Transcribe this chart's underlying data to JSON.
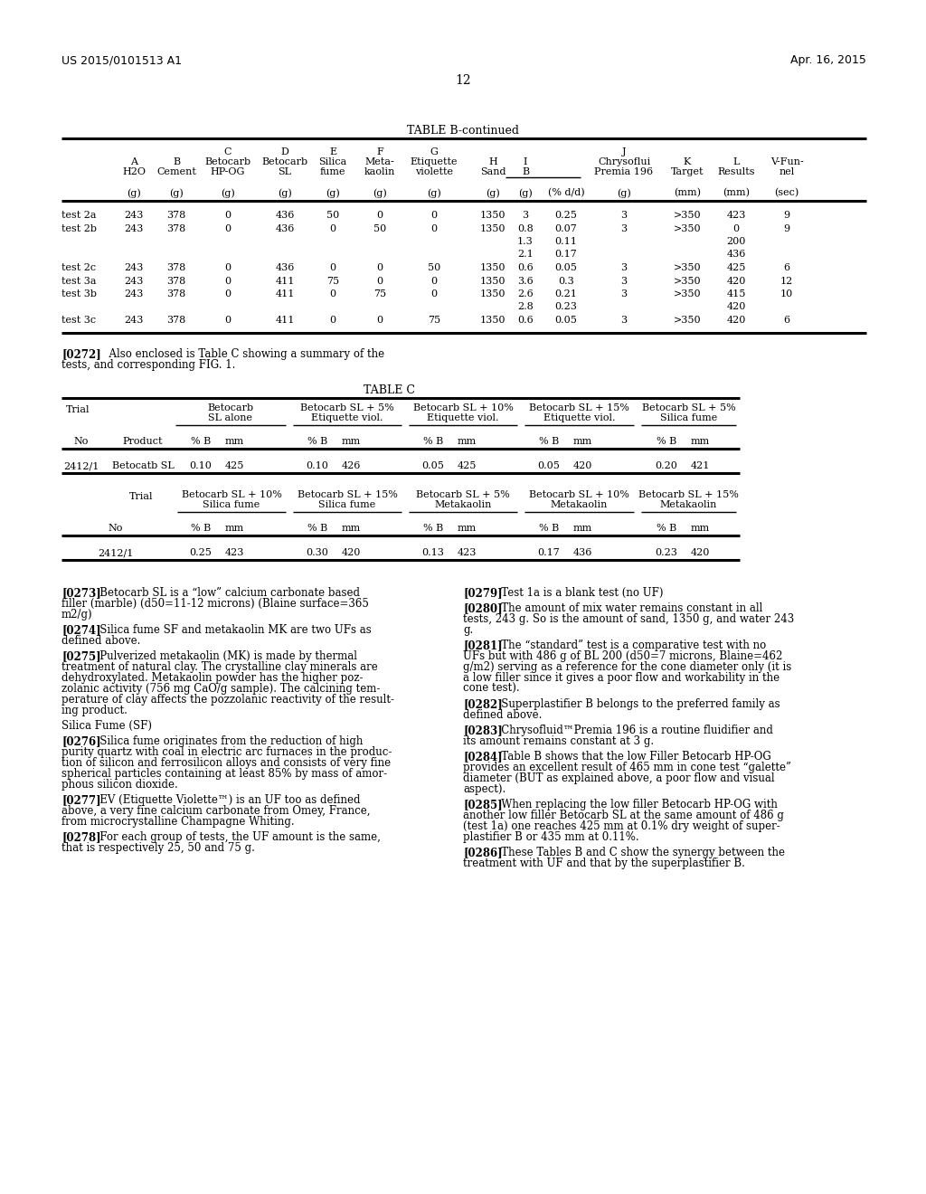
{
  "header_left": "US 2015/0101513 A1",
  "header_right": "Apr. 16, 2015",
  "page_number": "12",
  "table_b_title": "TABLE B-continued",
  "table_c_title": "TABLE C",
  "paragraph_272_bold": "[0272]",
  "paragraph_272_rest": "   Also enclosed is Table C showing a summary of the\ntests, and corresponding FIG. 1.",
  "paragraphs_left": [
    {
      "bold": "[0273]",
      "rest": "   Betocarb SL is a “low” calcium carbonate based\nfiller (marble) (d50=11-12 microns) (Blaine surface=365\nm2/g)"
    },
    {
      "bold": "[0274]",
      "rest": "   Silica fume SF and metakaolin MK are two UFs as\ndefined above."
    },
    {
      "bold": "[0275]",
      "rest": "   Pulverized metakaolin (MK) is made by thermal\ntreatment of natural clay. The crystalline clay minerals are\ndehydroxylated. Metakaolin powder has the higher poz-\nzolanic activity (756 mg CaO/g sample). The calcining tem-\nperature of clay affects the pozzolanic reactivity of the result-\ning product."
    },
    {
      "bold": "",
      "rest": "Silica Fume (SF)"
    },
    {
      "bold": "[0276]",
      "rest": "   Silica fume originates from the reduction of high\npurity quartz with coal in electric arc furnaces in the produc-\ntion of silicon and ferrosilicon alloys and consists of very fine\nspherical particles containing at least 85% by mass of amor-\nphous silicon dioxide."
    },
    {
      "bold": "[0277]",
      "rest": "   EV (Etiquette Violette™) is an UF too as defined\nabove, a very fine calcium carbonate from Omey, France,\nfrom microcrystalline Champagne Whiting."
    },
    {
      "bold": "[0278]",
      "rest": "   For each group of tests, the UF amount is the same,\nthat is respectively 25, 50 and 75 g."
    }
  ],
  "paragraphs_right": [
    {
      "bold": "[0279]",
      "rest": "   Test 1a is a blank test (no UF)"
    },
    {
      "bold": "[0280]",
      "rest": "   The amount of mix water remains constant in all\ntests, 243 g. So is the amount of sand, 1350 g, and water 243\ng."
    },
    {
      "bold": "[0281]",
      "rest": "   The “standard” test is a comparative test with no\nUFs but with 486 g of BL 200 (d50=7 microns, Blaine=462\ng/m2) serving as a reference for the cone diameter only (it is\na low filler since it gives a poor flow and workability in the\ncone test)."
    },
    {
      "bold": "[0282]",
      "rest": "   Superplastifier B belongs to the preferred family as\ndefined above."
    },
    {
      "bold": "[0283]",
      "rest": "   Chrysofluid™Premia 196 is a routine fluidifier and\nits amount remains constant at 3 g."
    },
    {
      "bold": "[0284]",
      "rest": "   Table B shows that the low Filler Betocarb HP-OG\nprovides an excellent result of 465 mm in cone test “galette”\ndiameter (BUT as explained above, a poor flow and visual\naspect)."
    },
    {
      "bold": "[0285]",
      "rest": "   When replacing the low filler Betocarb HP-OG with\nanother low filler Betocarb SL at the same amount of 486 g\n(test 1a) one reaches 425 mm at 0.1% dry weight of super-\nplastifier B or 435 mm at 0.11%."
    },
    {
      "bold": "[0286]",
      "rest": "   These Tables B and C show the synergy between the\ntreatment with UF and that by the superplastifier B."
    }
  ]
}
